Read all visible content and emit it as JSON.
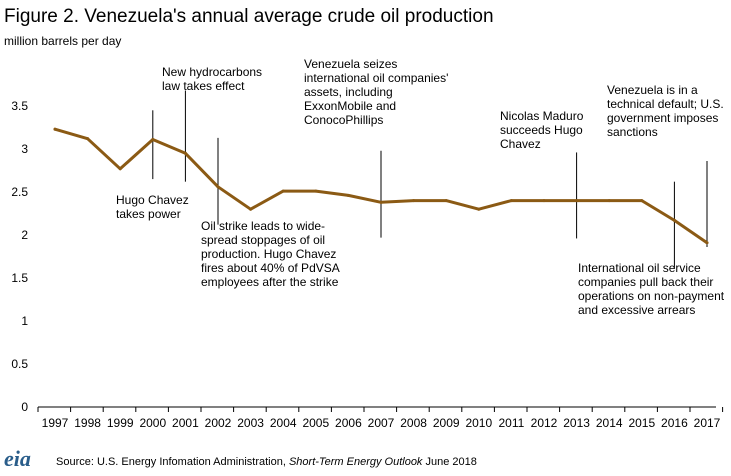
{
  "chart_data": {
    "type": "line",
    "title": "Figure 2. Venezuela's annual average crude oil production",
    "ylabel": "million barrels per day",
    "xlabel": "",
    "ylim": [
      0,
      3.5
    ],
    "yticks": [
      "0",
      "0.5",
      "1",
      "1.5",
      "2",
      "2.5",
      "3",
      "3.5"
    ],
    "categories": [
      "1997",
      "1998",
      "1999",
      "2000",
      "2001",
      "2002",
      "2003",
      "2004",
      "2005",
      "2006",
      "2007",
      "2008",
      "2009",
      "2010",
      "2011",
      "2012",
      "2013",
      "2014",
      "2015",
      "2016",
      "2017"
    ],
    "series": [
      {
        "values": [
          3.23,
          3.12,
          2.77,
          3.11,
          2.95,
          2.56,
          2.3,
          2.51,
          2.51,
          2.46,
          2.38,
          2.4,
          2.4,
          2.3,
          2.4,
          2.4,
          2.4,
          2.4,
          2.4,
          2.17,
          1.91
        ]
      }
    ],
    "grid": false,
    "line_color": "#8b5a14",
    "annotations": [
      {
        "year": 2000,
        "y_top": 3.45,
        "y_bottom": 2.65,
        "lines": [
          "Hugo Chavez",
          "takes power"
        ]
      },
      {
        "year": 2001,
        "y_top": 3.68,
        "y_bottom": 2.62,
        "lines": [
          "New hydrocarbons",
          "law takes effect"
        ]
      },
      {
        "year": 2002,
        "y_top": 3.13,
        "y_bottom": 2.12,
        "lines": [
          "Oil strike leads to wide-",
          "spread stoppages of oil",
          "production. Hugo Chavez",
          "fires about 40% of PdVSA",
          "employees after the strike"
        ]
      },
      {
        "year": 2007,
        "y_top": 2.98,
        "y_bottom": 1.97,
        "lines": [
          "Venezuela seizes",
          "international oil companies'",
          "assets, including",
          "ExxonMobile and",
          "ConocoPhillips"
        ]
      },
      {
        "year": 2013,
        "y_top": 2.96,
        "y_bottom": 1.96,
        "lines": [
          "Nicolas Maduro",
          "succeeds Hugo",
          "Chavez"
        ]
      },
      {
        "year": 2016,
        "y_top": 2.62,
        "y_bottom": 1.62,
        "lines": [
          "International oil service",
          "companies pull back their",
          "operations on non-payment",
          "and excessive arrears"
        ]
      },
      {
        "year": 2017,
        "y_top": 2.86,
        "y_bottom": 1.86,
        "lines": [
          "Venezuela is in a",
          "technical default; U.S.",
          "government imposes",
          "sanctions"
        ]
      }
    ]
  },
  "footer": {
    "logo": "eia",
    "source_prefix": "Source: U.S. Energy Infomation Administration, ",
    "source_title": "Short-Term Energy Outlook",
    "source_suffix": " June 2018"
  }
}
